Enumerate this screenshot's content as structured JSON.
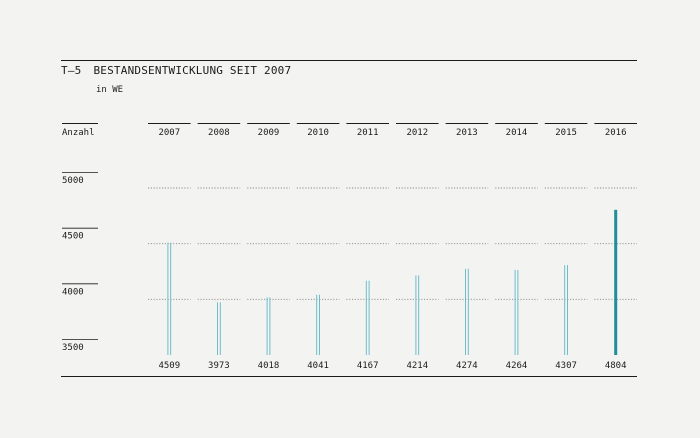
{
  "header": {
    "code": "T—5",
    "title": "BESTANDSENTWICKLUNG SEIT 2007",
    "unit": "in WE"
  },
  "chart_data": {
    "type": "bar",
    "title": "BESTANDSENTWICKLUNG SEIT 2007",
    "ylabel": "Anzahl",
    "categories": [
      "2007",
      "2008",
      "2009",
      "2010",
      "2011",
      "2012",
      "2013",
      "2014",
      "2015",
      "2016"
    ],
    "values": [
      4509,
      3973,
      4018,
      4041,
      4167,
      4214,
      4274,
      4264,
      4307,
      4804
    ],
    "yticks": [
      3500,
      4000,
      4500,
      5000
    ],
    "ylim": [
      3500,
      5000
    ],
    "grid": true,
    "colors": {
      "bar": "#5fb6c6",
      "highlight": "#1f8f9a",
      "highlight_index": 9,
      "ink": "#1b1b1b",
      "grid": "#8a8a8a"
    }
  }
}
